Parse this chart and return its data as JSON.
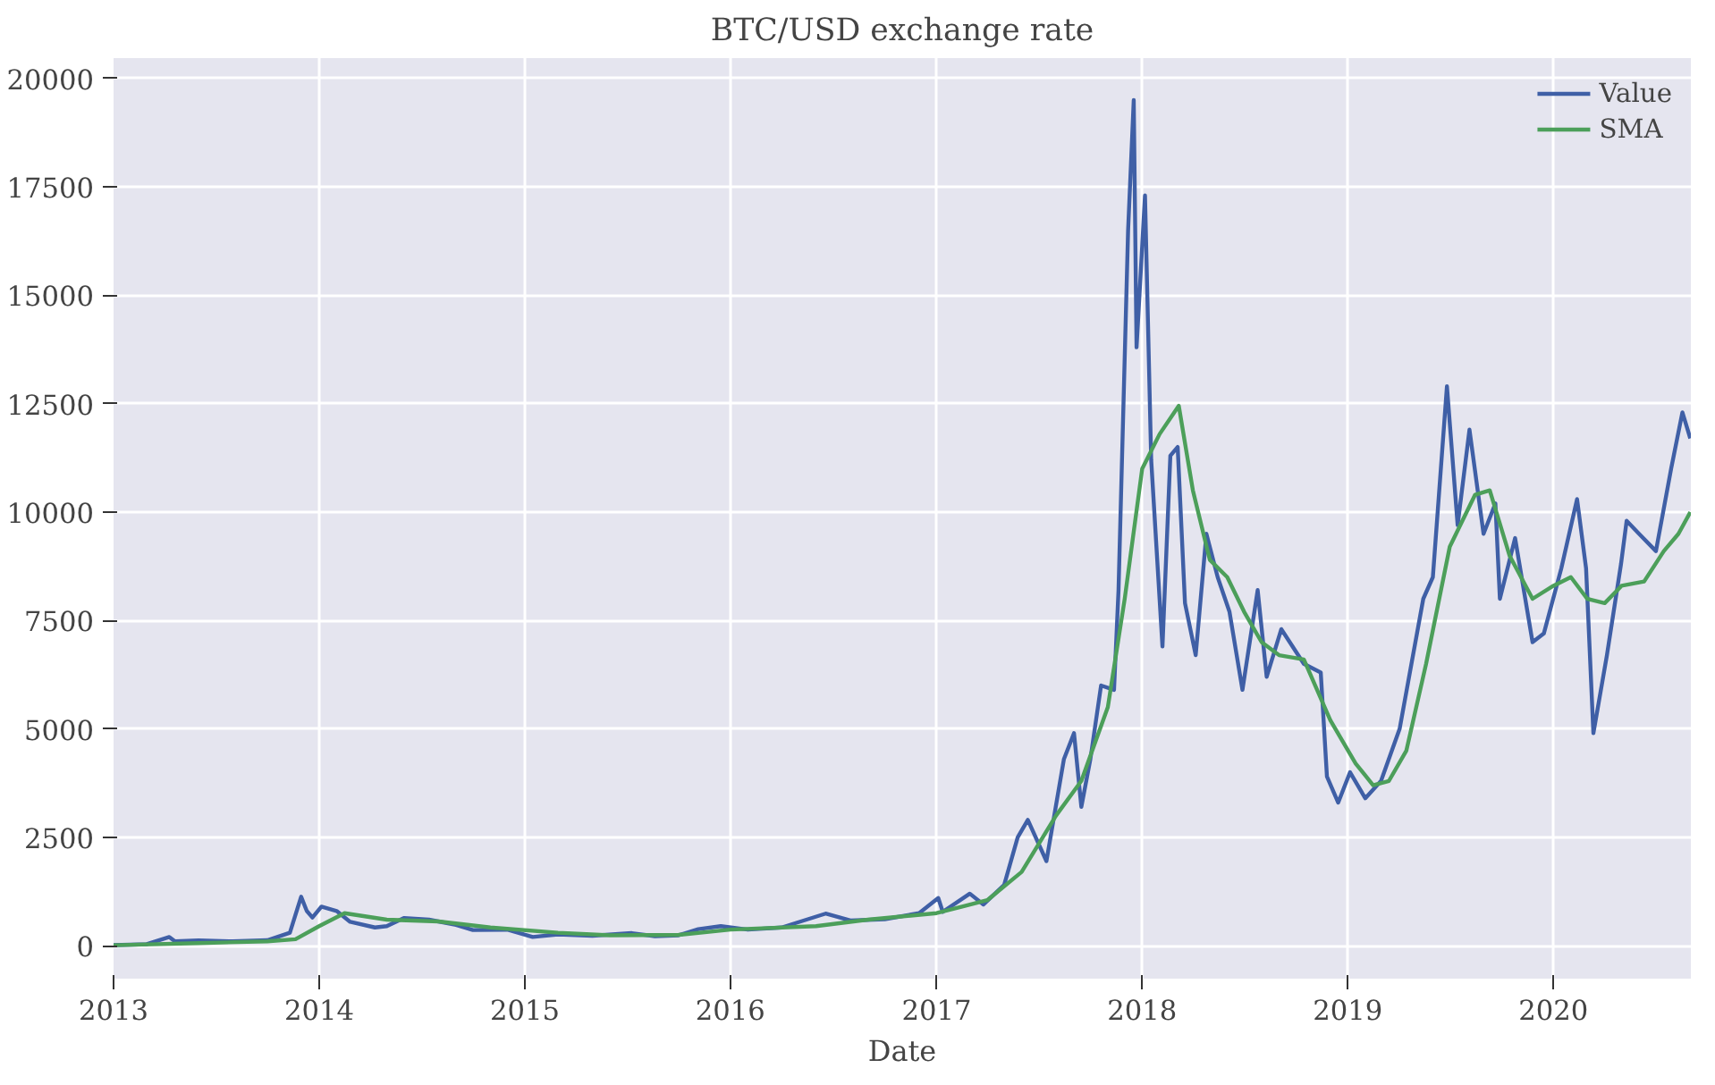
{
  "chart_data": {
    "type": "line",
    "title": "BTC/USD exchange rate",
    "xlabel": "Date",
    "xlim": [
      "2013-01-01",
      "2020-09-01"
    ],
    "ylim": [
      -760,
      20470
    ],
    "xticks": [
      "2013",
      "2014",
      "2015",
      "2016",
      "2017",
      "2018",
      "2019",
      "2020"
    ],
    "yticks": [
      0,
      2500,
      5000,
      7500,
      10000,
      12500,
      15000,
      17500,
      20000
    ],
    "grid": true,
    "legend": "top right",
    "line_style": "solid",
    "series": [
      {
        "name": "Value",
        "color": "#3f5fa6",
        "x": [
          "2013-01-01",
          "2013-03-01",
          "2013-04-10",
          "2013-04-20",
          "2013-06-01",
          "2013-08-01",
          "2013-10-01",
          "2013-11-10",
          "2013-11-30",
          "2013-12-10",
          "2013-12-20",
          "2014-01-05",
          "2014-02-01",
          "2014-02-25",
          "2014-04-10",
          "2014-05-01",
          "2014-06-01",
          "2014-07-15",
          "2014-09-01",
          "2014-10-01",
          "2014-12-01",
          "2015-01-15",
          "2015-03-01",
          "2015-05-01",
          "2015-07-10",
          "2015-08-20",
          "2015-10-01",
          "2015-11-05",
          "2015-12-15",
          "2016-02-01",
          "2016-04-01",
          "2016-06-18",
          "2016-08-01",
          "2016-10-01",
          "2016-12-01",
          "2017-01-04",
          "2017-01-12",
          "2017-03-01",
          "2017-03-25",
          "2017-05-01",
          "2017-05-25",
          "2017-06-12",
          "2017-07-15",
          "2017-08-15",
          "2017-09-02",
          "2017-09-15",
          "2017-10-01",
          "2017-10-20",
          "2017-11-12",
          "2017-11-20",
          "2017-12-07",
          "2017-12-17",
          "2017-12-22",
          "2018-01-06",
          "2018-01-17",
          "2018-02-06",
          "2018-02-20",
          "2018-03-05",
          "2018-03-18",
          "2018-04-06",
          "2018-04-25",
          "2018-05-15",
          "2018-06-05",
          "2018-06-28",
          "2018-07-25",
          "2018-08-10",
          "2018-09-05",
          "2018-10-15",
          "2018-11-14",
          "2018-11-25",
          "2018-12-15",
          "2019-01-05",
          "2019-02-01",
          "2019-03-01",
          "2019-04-03",
          "2019-05-15",
          "2019-06-01",
          "2019-06-26",
          "2019-07-15",
          "2019-08-05",
          "2019-08-30",
          "2019-09-20",
          "2019-09-28",
          "2019-10-25",
          "2019-11-25",
          "2019-12-15",
          "2020-01-15",
          "2020-02-12",
          "2020-02-28",
          "2020-03-12",
          "2020-04-05",
          "2020-04-30",
          "2020-05-10",
          "2020-06-01",
          "2020-07-01",
          "2020-07-28",
          "2020-08-17",
          "2020-08-31"
        ],
        "values": [
          13,
          35,
          200,
          100,
          120,
          100,
          125,
          300,
          1130,
          800,
          650,
          900,
          800,
          550,
          420,
          450,
          640,
          600,
          480,
          360,
          370,
          200,
          260,
          230,
          290,
          220,
          240,
          380,
          450,
          370,
          420,
          740,
          580,
          610,
          750,
          1100,
          780,
          1200,
          950,
          1400,
          2500,
          2900,
          1950,
          4300,
          4900,
          3200,
          4300,
          6000,
          5900,
          8200,
          16500,
          19500,
          13800,
          17300,
          11200,
          6900,
          11300,
          11500,
          7900,
          6700,
          9500,
          8500,
          7700,
          5900,
          8200,
          6200,
          7300,
          6500,
          6300,
          3900,
          3300,
          4000,
          3400,
          3800,
          5000,
          8000,
          8500,
          12900,
          9700,
          11900,
          9500,
          10200,
          8000,
          9400,
          7000,
          7200,
          8700,
          10300,
          8700,
          4900,
          6700,
          8800,
          9800,
          9500,
          9100,
          11000,
          12300,
          11700
        ]
      },
      {
        "name": "SMA",
        "color": "#4c9f5a",
        "x": [
          "2013-01-01",
          "2013-06-01",
          "2013-10-01",
          "2013-11-20",
          "2014-01-01",
          "2014-02-15",
          "2014-05-01",
          "2014-08-01",
          "2014-11-01",
          "2015-03-01",
          "2015-06-01",
          "2015-10-01",
          "2016-01-01",
          "2016-06-01",
          "2016-09-01",
          "2017-01-01",
          "2017-04-01",
          "2017-06-01",
          "2017-08-01",
          "2017-09-15",
          "2017-11-01",
          "2017-12-01",
          "2018-01-01",
          "2018-02-01",
          "2018-03-07",
          "2018-04-01",
          "2018-05-01",
          "2018-06-01",
          "2018-07-01",
          "2018-08-01",
          "2018-09-01",
          "2018-10-15",
          "2018-12-01",
          "2019-01-15",
          "2019-02-15",
          "2019-03-15",
          "2019-04-15",
          "2019-05-20",
          "2019-07-01",
          "2019-08-15",
          "2019-09-10",
          "2019-10-15",
          "2019-11-25",
          "2020-01-01",
          "2020-02-01",
          "2020-03-01",
          "2020-04-01",
          "2020-05-01",
          "2020-06-10",
          "2020-07-15",
          "2020-08-10",
          "2020-08-31"
        ],
        "values": [
          10,
          60,
          100,
          150,
          450,
          750,
          600,
          560,
          420,
          300,
          240,
          250,
          370,
          450,
          600,
          750,
          1050,
          1700,
          3000,
          3800,
          5500,
          8000,
          11000,
          11800,
          12450,
          10500,
          8900,
          8500,
          7700,
          7000,
          6700,
          6600,
          5200,
          4200,
          3700,
          3800,
          4500,
          6500,
          9200,
          10400,
          10500,
          9000,
          8000,
          8300,
          8500,
          8000,
          7900,
          8300,
          8400,
          9100,
          9500,
          10000
        ]
      }
    ]
  }
}
